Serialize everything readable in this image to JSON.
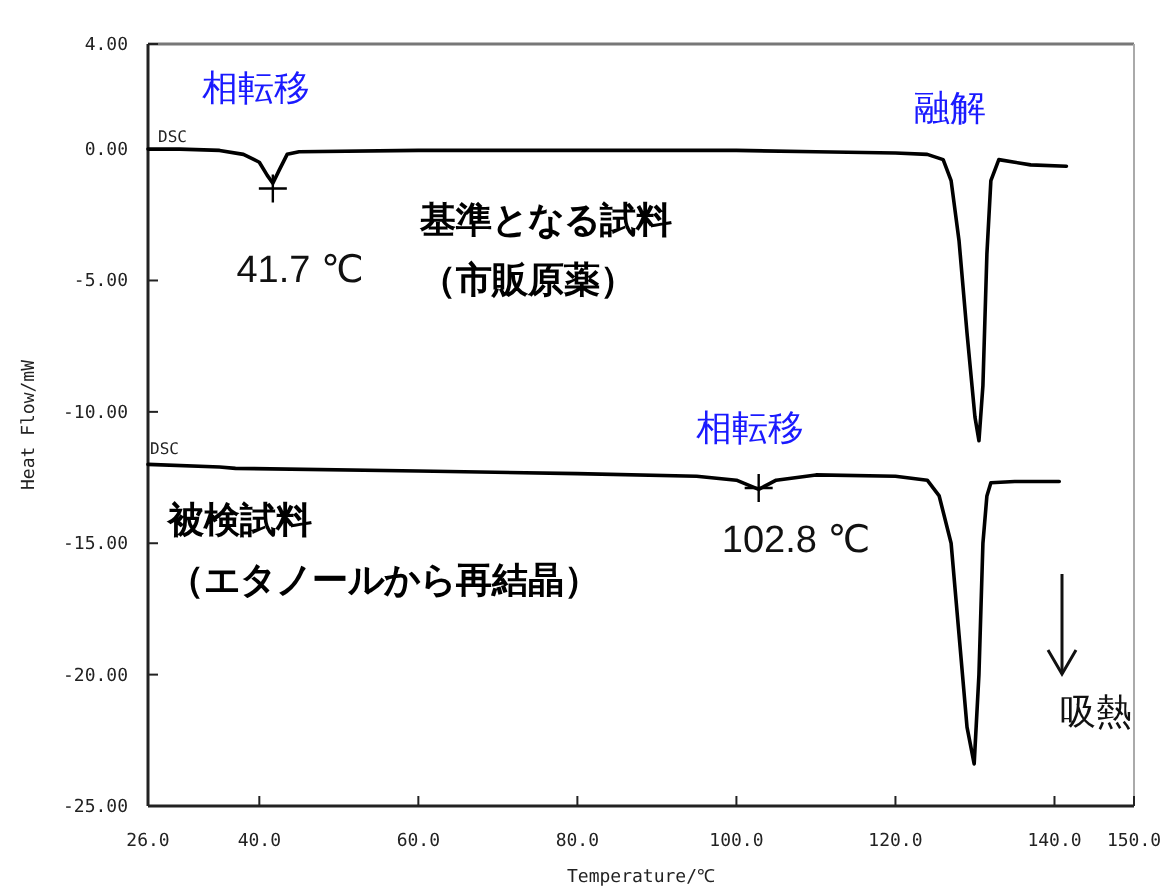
{
  "chart_data": {
    "type": "line",
    "xlabel": "Temperature/℃",
    "ylabel": "Heat Flow/mW",
    "xlim": [
      26,
      150
    ],
    "ylim": [
      -25,
      4
    ],
    "xticks": [
      {
        "value": 26,
        "label": "26.0"
      },
      {
        "value": 40,
        "label": "40.0"
      },
      {
        "value": 60,
        "label": "60.0"
      },
      {
        "value": 80,
        "label": "80.0"
      },
      {
        "value": 100,
        "label": "100.0"
      },
      {
        "value": 120,
        "label": "120.0"
      },
      {
        "value": 140,
        "label": "140.0"
      },
      {
        "value": 150,
        "label": "150.0"
      }
    ],
    "yticks": [
      {
        "value": 4,
        "label": "4.00"
      },
      {
        "value": 0,
        "label": "0.00"
      },
      {
        "value": -5,
        "label": "-5.00"
      },
      {
        "value": -10,
        "label": "-10.00"
      },
      {
        "value": -15,
        "label": "-15.00"
      },
      {
        "value": -20,
        "label": "-20.00"
      },
      {
        "value": -25,
        "label": "-25.00"
      }
    ],
    "grid": false,
    "series": [
      {
        "color": "#000000",
        "x": [
          26,
          30,
          35,
          38,
          40,
          41,
          41.7,
          42.5,
          43.5,
          45,
          60,
          80,
          100,
          110,
          120,
          124,
          126,
          127,
          128,
          129,
          130,
          130.5,
          131,
          131.5,
          132,
          133,
          135,
          137,
          141.5
        ],
        "values": [
          0,
          0,
          -0.05,
          -0.2,
          -0.5,
          -1.0,
          -1.3,
          -0.8,
          -0.2,
          -0.1,
          -0.05,
          -0.05,
          -0.05,
          -0.1,
          -0.15,
          -0.2,
          -0.4,
          -1.2,
          -3.5,
          -7,
          -10.2,
          -11.1,
          -9,
          -4,
          -1.2,
          -0.4,
          -0.5,
          -0.6,
          -0.65
        ]
      },
      {
        "color": "#000000",
        "x": [
          26,
          35,
          37,
          60,
          80,
          95,
          100,
          102.8,
          105,
          110,
          120,
          124,
          125.5,
          127,
          128,
          129,
          129.9,
          130.5,
          131,
          131.5,
          132,
          135,
          140.6
        ],
        "values": [
          -12.0,
          -12.1,
          -12.15,
          -12.25,
          -12.35,
          -12.45,
          -12.6,
          -12.95,
          -12.6,
          -12.4,
          -12.45,
          -12.6,
          -13.2,
          -15,
          -18.5,
          -22,
          -23.4,
          -20,
          -15,
          -13.2,
          -12.7,
          -12.65,
          -12.65
        ]
      },
      {
        "type": "scatter",
        "marker": "cross",
        "color": "#000000",
        "x": [
          41.7,
          102.8
        ],
        "values": [
          -1.5,
          -12.9
        ]
      }
    ],
    "annotations": [
      "相転移",
      "41.7 ℃",
      "融解",
      "相転移",
      "102.8 ℃",
      "基準となる試料",
      "（市販原薬）",
      "被検試料",
      "（エタノールから再結晶）",
      "吸熱",
      "DSC",
      "DSC"
    ]
  }
}
